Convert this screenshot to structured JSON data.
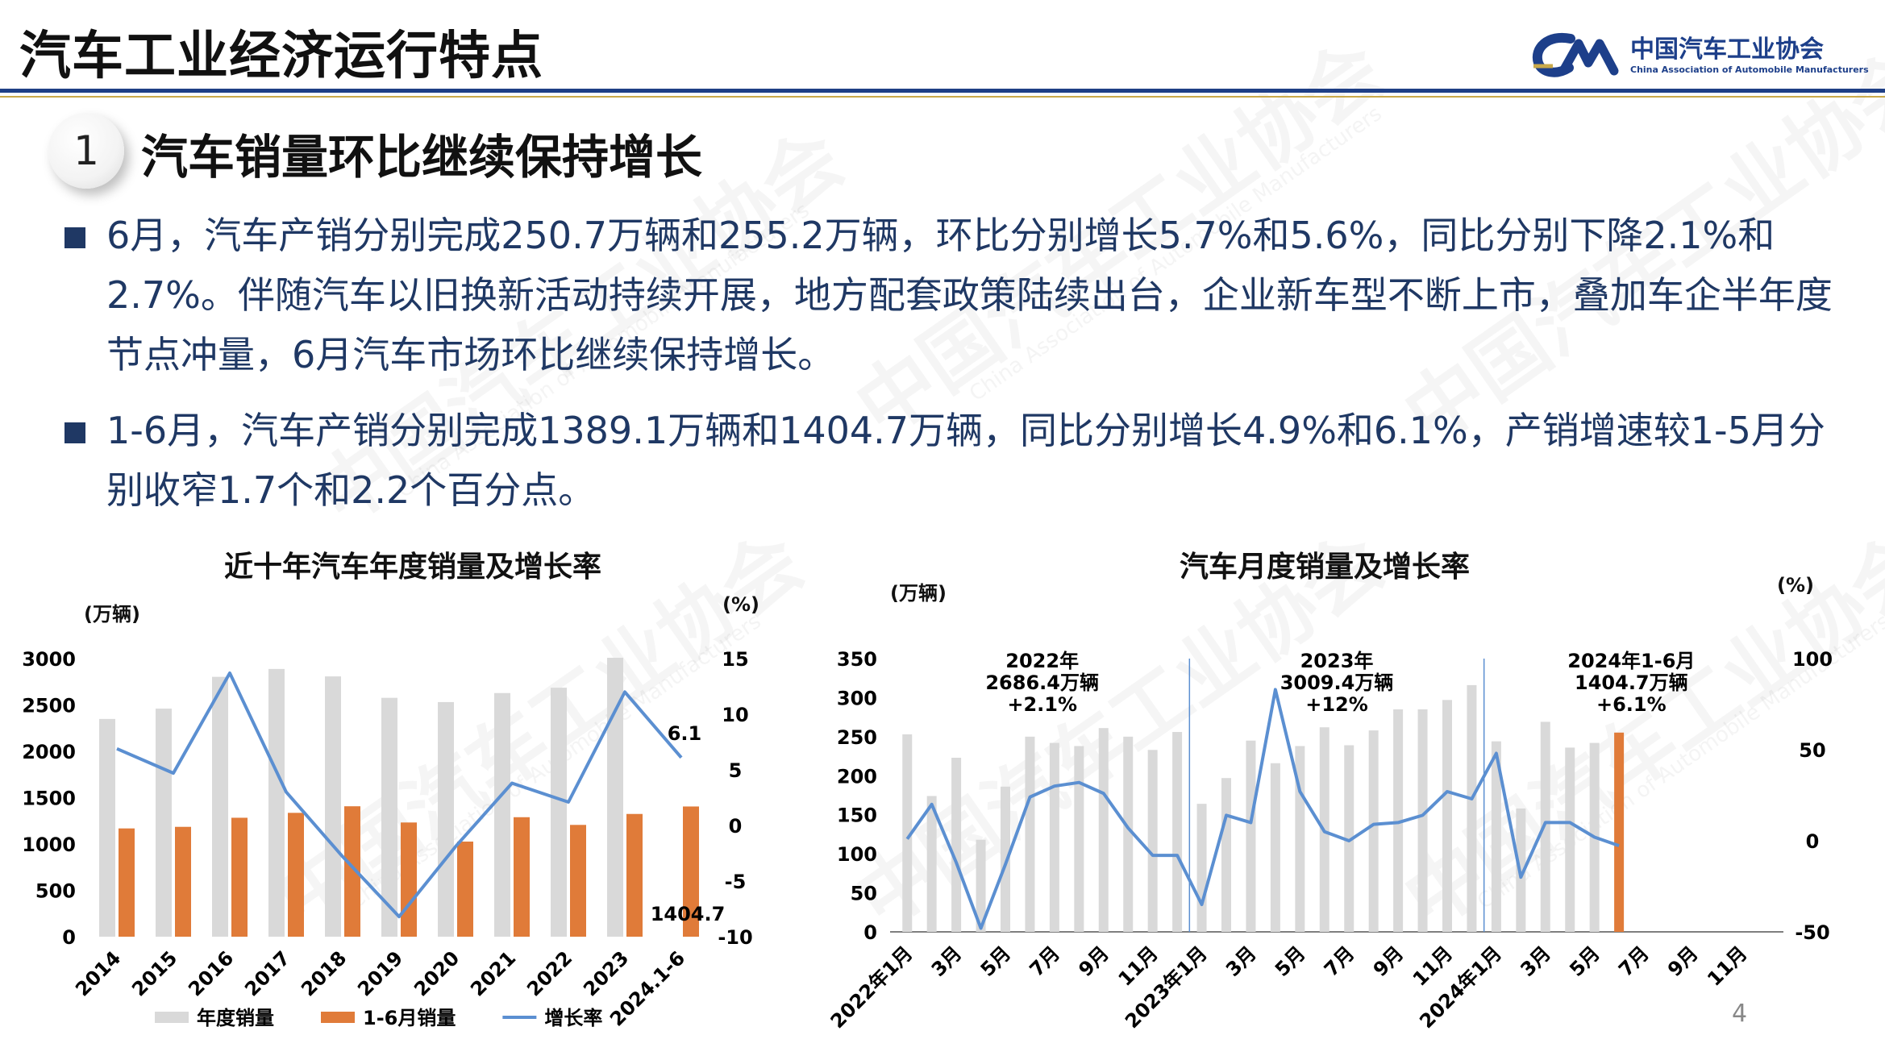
{
  "header": {
    "title": "汽车工业经济运行特点",
    "logo_name": "中国汽车工业协会",
    "logo_sub": "China Association of Automobile Manufacturers",
    "accent_color": "#1f3f86",
    "gold_color": "#c9a94a"
  },
  "section": {
    "number": "1",
    "title": "汽车销量环比继续保持增长"
  },
  "bullets": [
    "6月，汽车产销分别完成250.7万辆和255.2万辆，环比分别增长5.7%和5.6%，同比分别下降2.1%和2.7%。伴随汽车以旧换新活动持续开展，地方配套政策陆续出台，企业新车型不断上市，叠加车企半年度节点冲量，6月汽车市场环比继续保持增长。",
    "1-6月，汽车产销分别完成1389.1万辆和1404.7万辆，同比分别增长4.9%和6.1%，产销增速较1-5月分别收窄1.7个和2.2个百分点。"
  ],
  "watermark": {
    "text": "中国汽车工业协会",
    "sub": "China Association of Automobile Manufacturers"
  },
  "page_number": "4",
  "chart_data": [
    {
      "type": "bar",
      "title": "近十年汽车年度销量及增长率",
      "y_unit_left": "(万辆)",
      "y_unit_right": "(%)",
      "categories": [
        "2014",
        "2015",
        "2016",
        "2017",
        "2018",
        "2019",
        "2020",
        "2021",
        "2022",
        "2023",
        "2024.1-6"
      ],
      "series": [
        {
          "name": "年度销量",
          "kind": "bar",
          "color": "#d9d9d9",
          "values": [
            2349,
            2460,
            2803,
            2888,
            2808,
            2577,
            2531,
            2628,
            2686,
            3009,
            null
          ]
        },
        {
          "name": "1-6月销量",
          "kind": "bar",
          "color": "#e07b39",
          "values": [
            1168,
            1185,
            1283,
            1336,
            1407,
            1232,
            1026,
            1289,
            1206,
            1324,
            1404.7
          ]
        },
        {
          "name": "增长率",
          "kind": "line",
          "axis": "right",
          "color": "#5b8fd1",
          "values": [
            6.9,
            4.7,
            13.7,
            3.0,
            -2.8,
            -8.2,
            -1.9,
            3.8,
            2.1,
            12.0,
            6.1
          ]
        }
      ],
      "ylim_left": [
        0,
        3000
      ],
      "yticks_left": [
        "0",
        "500",
        "1000",
        "1500",
        "2000",
        "2500",
        "3000"
      ],
      "ylim_right": [
        -10,
        15
      ],
      "yticks_right": [
        "-10",
        "-5",
        "0",
        "5",
        "10",
        "15"
      ],
      "annotations": {
        "last_rate": "6.1",
        "last_sales": "1404.7"
      },
      "legend": "bottom",
      "grid": false
    },
    {
      "type": "bar",
      "title": "汽车月度销量及增长率",
      "y_unit_left": "(万辆)",
      "y_unit_right": "(%)",
      "categories": [
        "2022年1月",
        "2月",
        "3月",
        "4月",
        "5月",
        "6月",
        "7月",
        "8月",
        "9月",
        "10月",
        "11月",
        "12月",
        "2023年1月",
        "2月",
        "3月",
        "4月",
        "5月",
        "6月",
        "7月",
        "8月",
        "9月",
        "10月",
        "11月",
        "12月",
        "2024年1月",
        "2月",
        "3月",
        "4月",
        "5月",
        "6月",
        "7月",
        "8月",
        "9月",
        "10月",
        "11月",
        "12月"
      ],
      "tick_labels": [
        "2022年1月",
        "3月",
        "5月",
        "7月",
        "9月",
        "11月",
        "2023年1月",
        "3月",
        "5月",
        "7月",
        "9月",
        "11月",
        "2024年1月",
        "3月",
        "5月",
        "7月",
        "9月",
        "11月"
      ],
      "series": [
        {
          "name": "月度销量",
          "kind": "bar",
          "color": "#d9d9d9",
          "values": [
            253,
            174,
            223,
            118,
            186,
            250,
            242,
            238,
            261,
            250,
            233,
            256,
            164,
            197,
            245,
            216,
            238,
            262,
            239,
            258,
            285,
            285,
            297,
            316,
            244,
            158,
            269,
            236,
            242,
            null,
            null,
            null,
            null,
            null,
            null,
            null
          ]
        },
        {
          "name": "6月销量",
          "kind": "bar",
          "color": "#e07b39",
          "values": [
            null,
            null,
            null,
            null,
            null,
            null,
            null,
            null,
            null,
            null,
            null,
            null,
            null,
            null,
            null,
            null,
            null,
            null,
            null,
            null,
            null,
            null,
            null,
            null,
            null,
            null,
            null,
            null,
            null,
            255.2,
            null,
            null,
            null,
            null,
            null,
            null
          ]
        },
        {
          "name": "增长率",
          "kind": "line",
          "axis": "right",
          "color": "#5b8fd1",
          "values": [
            1,
            20,
            -12,
            -48,
            -13,
            24,
            30,
            32,
            26,
            7,
            -8,
            -8,
            -35,
            14,
            10,
            83,
            27,
            5,
            0,
            9,
            10,
            14,
            27,
            23,
            48,
            -20,
            10,
            10,
            2,
            -2.7,
            null,
            null,
            null,
            null,
            null,
            null
          ]
        }
      ],
      "ylim_left": [
        0,
        350
      ],
      "yticks_left": [
        "0",
        "50",
        "100",
        "150",
        "200",
        "250",
        "300",
        "350"
      ],
      "ylim_right": [
        -50,
        100
      ],
      "yticks_right": [
        "-50",
        "0",
        "50",
        "100"
      ],
      "year_annotations": [
        {
          "line1": "2022年",
          "line2": "2686.4万辆",
          "line3": "+2.1%"
        },
        {
          "line1": "2023年",
          "line2": "3009.4万辆",
          "line3": "+12%"
        },
        {
          "line1": "2024年1-6月",
          "line2": "1404.7万辆",
          "line3": "+6.1%"
        }
      ],
      "grid": false
    }
  ]
}
